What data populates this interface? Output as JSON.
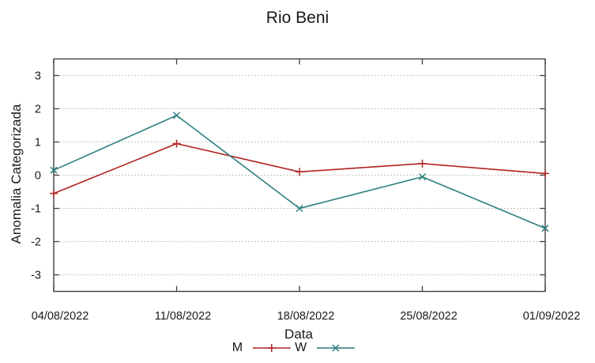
{
  "chart_data": {
    "type": "line",
    "title": "Rio Beni",
    "xlabel": "Data",
    "ylabel": "Anomalia Categorizada",
    "categories": [
      "04/08/2022",
      "11/08/2022",
      "18/08/2022",
      "25/08/2022",
      "01/09/2022"
    ],
    "series": [
      {
        "name": "M",
        "color": "#b22222",
        "marker": "plus",
        "values": [
          -0.55,
          0.95,
          0.1,
          0.35,
          0.05
        ]
      },
      {
        "name": "W",
        "color": "#2d7f7f",
        "marker": "cross",
        "values": [
          0.15,
          1.8,
          -1.0,
          -0.05,
          -1.6
        ]
      }
    ],
    "y_ticks": [
      3,
      2,
      1,
      0,
      -1,
      -2,
      -3
    ],
    "ylim": [
      -3.5,
      3.5
    ],
    "grid": "horizontal-dotted",
    "legend_position": "bottom-center-horizontal"
  },
  "colors": {
    "background": "#ffffff",
    "axis": "#3f3f3f",
    "grid": "#b0b0b0",
    "text": "#1a1a1a"
  }
}
